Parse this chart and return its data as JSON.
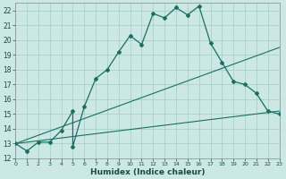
{
  "xlabel": "Humidex (Indice chaleur)",
  "ylabel": "",
  "xlim": [
    0,
    23
  ],
  "ylim": [
    12,
    22.5
  ],
  "xticks": [
    0,
    1,
    2,
    3,
    4,
    5,
    6,
    7,
    8,
    9,
    10,
    11,
    12,
    13,
    14,
    15,
    16,
    17,
    18,
    19,
    20,
    21,
    22,
    23
  ],
  "yticks": [
    12,
    13,
    14,
    15,
    16,
    17,
    18,
    19,
    20,
    21,
    22
  ],
  "bg_color": "#cce8e4",
  "line_color": "#1a6e64",
  "grid_color": "#aacfcb",
  "main_line_x": [
    0,
    1,
    2,
    3,
    4,
    5,
    5,
    6,
    7,
    8,
    9,
    10,
    11,
    12,
    13,
    14,
    15,
    16,
    17,
    18,
    19,
    20,
    21,
    22,
    23
  ],
  "main_line_y": [
    13,
    12.5,
    13.1,
    13.1,
    13.9,
    15.2,
    12.8,
    15.5,
    17.4,
    18.0,
    19.2,
    20.3,
    19.7,
    21.8,
    21.5,
    22.2,
    21.7,
    22.3,
    19.8,
    18.5,
    17.2,
    17.0,
    16.4,
    15.2,
    15.0
  ],
  "line2_x": [
    0,
    23
  ],
  "line2_y": [
    13.0,
    19.5
  ],
  "line3_x": [
    0,
    23
  ],
  "line3_y": [
    13.0,
    15.2
  ]
}
